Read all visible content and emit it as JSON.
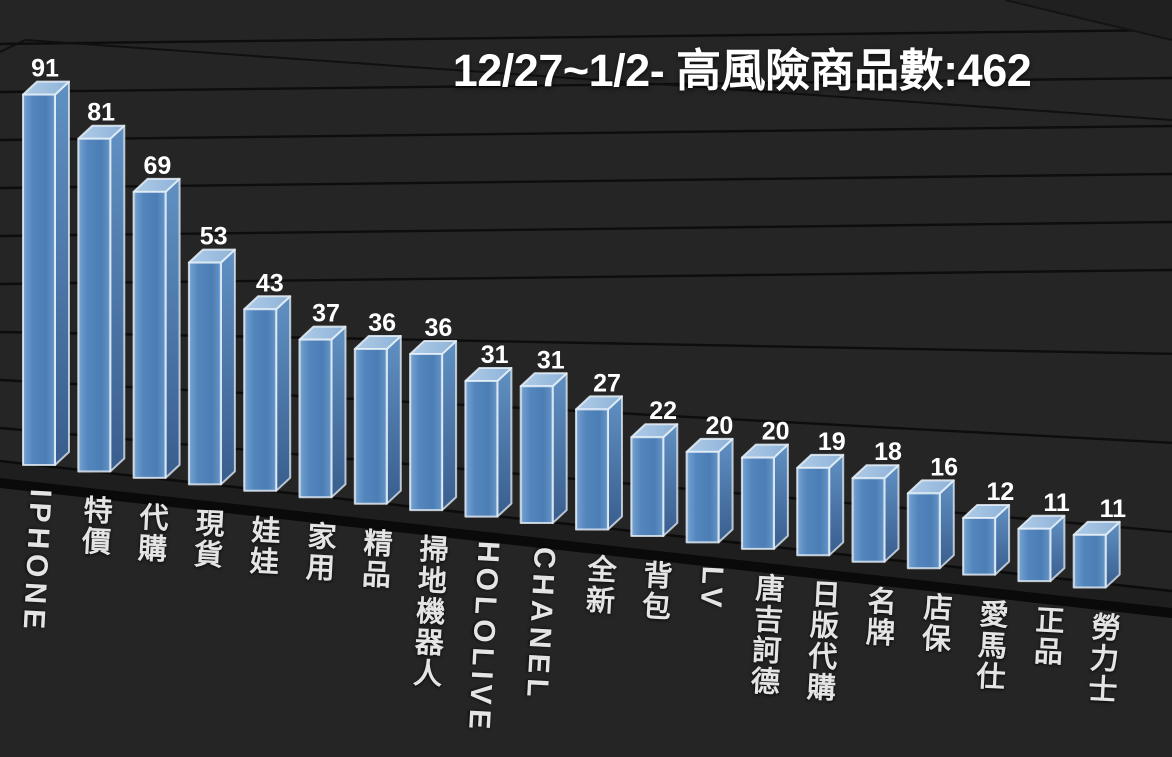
{
  "title": "12/27~1/2- 高風險商品數:462",
  "chart_data": {
    "type": "bar",
    "style": "3d-column",
    "title": "12/27~1/2- 高風險商品數:462",
    "total_shown_in_title": 462,
    "categories": [
      "IPHONE",
      "特價",
      "代購",
      "現貨",
      "娃娃",
      "家用",
      "精品",
      "掃地機器人",
      "HOLOLIVE",
      "CHANEL",
      "全新",
      "背包",
      "LV",
      "唐吉訶德",
      "日版代購",
      "名牌",
      "店保",
      "愛馬仕",
      "正品",
      "勞力士"
    ],
    "values": [
      91,
      81,
      69,
      53,
      43,
      37,
      36,
      36,
      31,
      31,
      27,
      22,
      20,
      20,
      19,
      18,
      16,
      12,
      11,
      11
    ],
    "data_labels": true,
    "legend": "none",
    "grid": true,
    "xlabel": "",
    "ylabel": "",
    "colors": {
      "background": "#252525",
      "bar_front": "#5486BE",
      "bar_top": "#A3C4E2",
      "bar_side": "#44719F",
      "bar_edge": "#E8F1F9",
      "gridline": "#0D0D0D",
      "label_text": "#E4E4E4",
      "value_text": "#FFFFFF",
      "title_text": "#FFFFFF"
    }
  }
}
